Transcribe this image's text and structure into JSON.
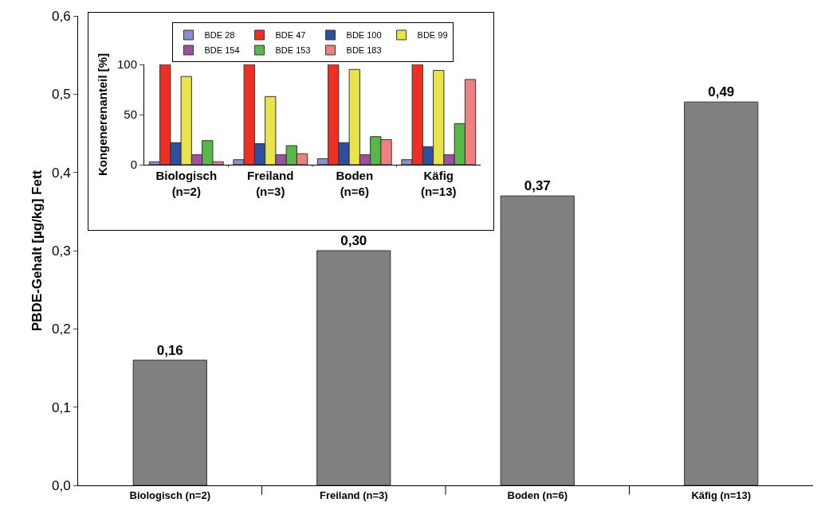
{
  "chart_data": [
    {
      "type": "bar",
      "ylabel": "PBDE-Gehalt [µg/kg] Fett",
      "categories": [
        "Biologisch (n=2)",
        "Freiland (n=3)",
        "Boden (n=6)",
        "Käfig (n=13)"
      ],
      "values": [
        0.16,
        0.3,
        0.37,
        0.49
      ],
      "value_labels": [
        "0,16",
        "0,30",
        "0,37",
        "0,49"
      ],
      "color": "#808080",
      "ylim": [
        0,
        0.6
      ],
      "yticks": [
        {
          "value": 0,
          "label": "0,0"
        },
        {
          "value": 0.1,
          "label": "0,1"
        },
        {
          "value": 0.2,
          "label": "0,2"
        },
        {
          "value": 0.3,
          "label": "0,3"
        },
        {
          "value": 0.4,
          "label": "0,4"
        },
        {
          "value": 0.5,
          "label": "0,5"
        },
        {
          "value": 0.6,
          "label": "0,6"
        }
      ],
      "grid": false,
      "legend": false
    },
    {
      "type": "bar",
      "ylabel": "Kongenerenanteil [%]",
      "categories": [
        "Biologisch (n=2)",
        "Freiland (n=3)",
        "Boden (n=6)",
        "Käfig (n=13)"
      ],
      "ylim": [
        0,
        100
      ],
      "yticks": [
        0,
        50,
        100
      ],
      "grid": false,
      "legend": "top",
      "series": [
        {
          "name": "BDE 28",
          "color": "#8c8cd0",
          "values": [
            3,
            5,
            6,
            5
          ]
        },
        {
          "name": "BDE 47",
          "color": "#ee3024",
          "values": [
            100,
            100,
            100,
            100
          ]
        },
        {
          "name": "BDE 100",
          "color": "#2e4ea0",
          "values": [
            22,
            21,
            22,
            18
          ]
        },
        {
          "name": "BDE 99",
          "color": "#e8e44a",
          "values": [
            88,
            68,
            95,
            94
          ]
        },
        {
          "name": "BDE 154",
          "color": "#a050a0",
          "values": [
            10,
            10,
            10,
            10
          ]
        },
        {
          "name": "BDE 153",
          "color": "#56b848",
          "values": [
            24,
            19,
            28,
            41
          ]
        },
        {
          "name": "BDE 183",
          "color": "#f08080",
          "values": [
            3,
            11,
            25,
            85
          ]
        }
      ]
    }
  ]
}
